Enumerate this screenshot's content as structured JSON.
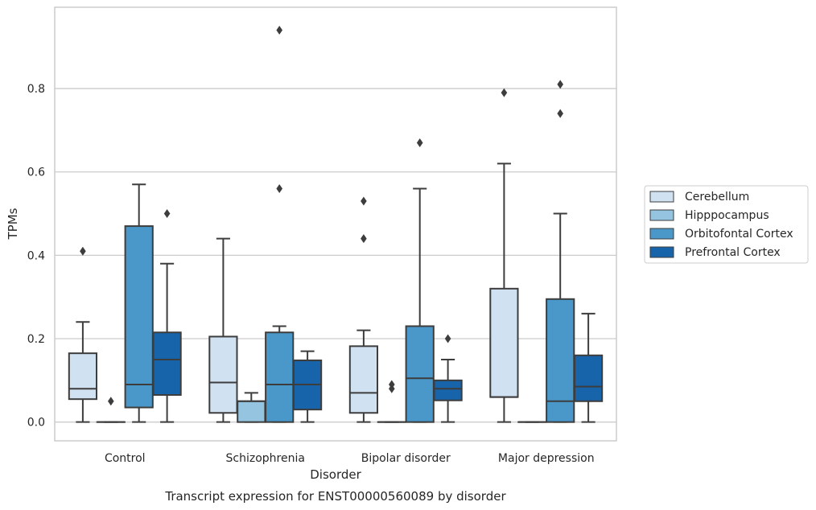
{
  "chart_data": {
    "type": "box",
    "caption": "Transcript expression for ENST00000560089 by disorder",
    "xlabel": "Disorder",
    "ylabel": "TPMs",
    "ylim": [
      -0.045,
      0.995
    ],
    "yticks": [
      0.0,
      0.2,
      0.4,
      0.6,
      0.8
    ],
    "ytick_labels": [
      "0.0",
      "0.2",
      "0.4",
      "0.6",
      "0.8"
    ],
    "grid": true,
    "legend_position": "right",
    "categories": [
      "Control",
      "Schizophrenia",
      "Bipolar disorder",
      "Major depression"
    ],
    "series": [
      {
        "name": "Cerebellum",
        "color": "#d0e1f2",
        "boxes": [
          {
            "whislo": 0.0,
            "q1": 0.055,
            "med": 0.08,
            "q3": 0.165,
            "whishi": 0.24,
            "fliers": [
              0.41
            ]
          },
          {
            "whislo": 0.0,
            "q1": 0.022,
            "med": 0.095,
            "q3": 0.205,
            "whishi": 0.44,
            "fliers": []
          },
          {
            "whislo": 0.0,
            "q1": 0.022,
            "med": 0.07,
            "q3": 0.182,
            "whishi": 0.22,
            "fliers": [
              0.44,
              0.53
            ]
          },
          {
            "whislo": 0.0,
            "q1": 0.06,
            "med": 0.06,
            "q3": 0.32,
            "whishi": 0.62,
            "fliers": [
              0.79
            ]
          }
        ]
      },
      {
        "name": "Hipppocampus",
        "color": "#94c4df",
        "boxes": [
          {
            "whislo": 0.0,
            "q1": 0.0,
            "med": 0.0,
            "q3": 0.0,
            "whishi": 0.0,
            "fliers": [
              0.05
            ]
          },
          {
            "whislo": 0.0,
            "q1": 0.0,
            "med": 0.05,
            "q3": 0.05,
            "whishi": 0.07,
            "fliers": []
          },
          {
            "whislo": 0.0,
            "q1": 0.0,
            "med": 0.0,
            "q3": 0.0,
            "whishi": 0.0,
            "fliers": [
              0.08,
              0.09
            ]
          },
          {
            "whislo": 0.0,
            "q1": 0.0,
            "med": 0.0,
            "q3": 0.0,
            "whishi": 0.0,
            "fliers": []
          }
        ]
      },
      {
        "name": "Orbitofontal Cortex",
        "color": "#4a98c9",
        "boxes": [
          {
            "whislo": 0.0,
            "q1": 0.035,
            "med": 0.09,
            "q3": 0.47,
            "whishi": 0.57,
            "fliers": []
          },
          {
            "whislo": 0.0,
            "q1": 0.0,
            "med": 0.09,
            "q3": 0.215,
            "whishi": 0.23,
            "fliers": [
              0.56,
              0.94
            ]
          },
          {
            "whislo": 0.0,
            "q1": 0.0,
            "med": 0.105,
            "q3": 0.23,
            "whishi": 0.56,
            "fliers": [
              0.67
            ]
          },
          {
            "whislo": 0.0,
            "q1": 0.0,
            "med": 0.05,
            "q3": 0.295,
            "whishi": 0.5,
            "fliers": [
              0.74,
              0.81
            ]
          }
        ]
      },
      {
        "name": "Prefrontal Cortex",
        "color": "#1764ab",
        "boxes": [
          {
            "whislo": 0.0,
            "q1": 0.065,
            "med": 0.15,
            "q3": 0.215,
            "whishi": 0.38,
            "fliers": [
              0.5
            ]
          },
          {
            "whislo": 0.0,
            "q1": 0.03,
            "med": 0.09,
            "q3": 0.148,
            "whishi": 0.17,
            "fliers": []
          },
          {
            "whislo": 0.0,
            "q1": 0.052,
            "med": 0.08,
            "q3": 0.1,
            "whishi": 0.15,
            "fliers": [
              0.2
            ]
          },
          {
            "whislo": 0.0,
            "q1": 0.05,
            "med": 0.085,
            "q3": 0.16,
            "whishi": 0.26,
            "fliers": []
          }
        ]
      }
    ]
  }
}
